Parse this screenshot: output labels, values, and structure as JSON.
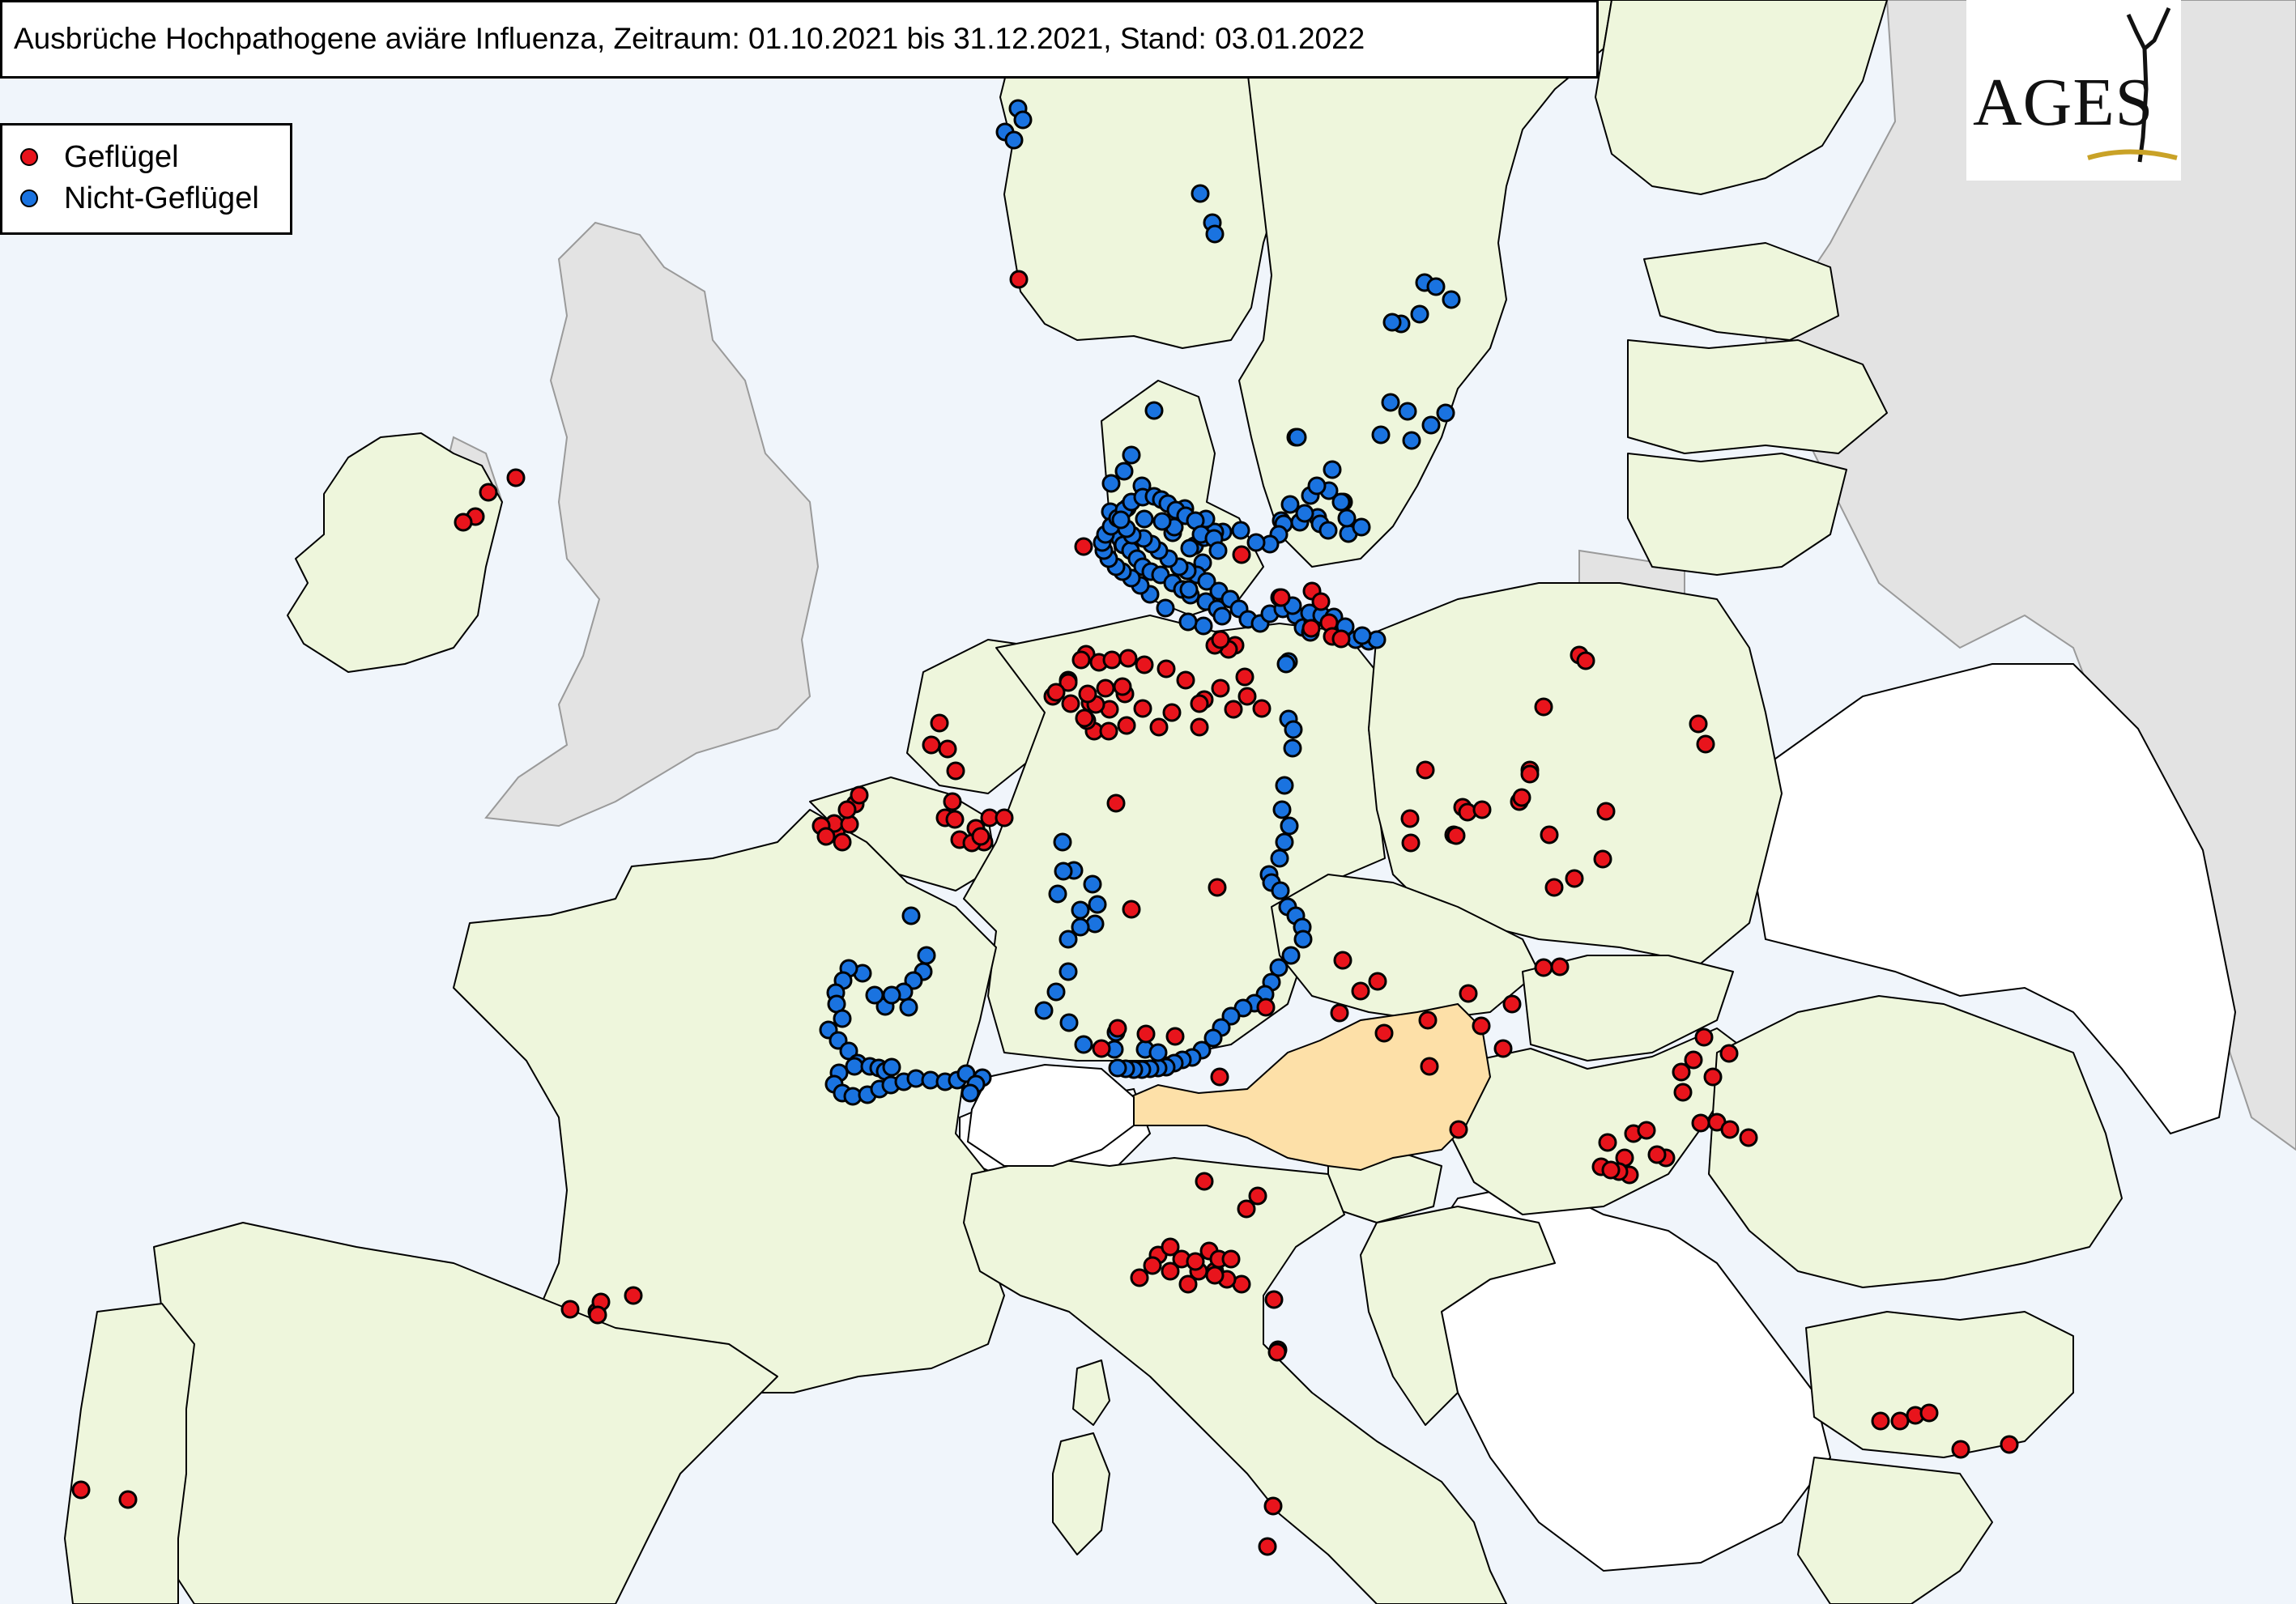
{
  "title": "Ausbrüche Hochpathogene aviäre Influenza, Zeitraum: 01.10.2021 bis 31.12.2021, Stand: 03.01.2022",
  "legend": {
    "poultry_label": "Geflügel",
    "nonpoultry_label": "Nicht-Geflügel"
  },
  "logo": {
    "text": "AGES"
  },
  "colors": {
    "sea": "#f0f5fb",
    "affected_country": "#eef6dc",
    "austria": "#fde0a8",
    "unaffected_country": "#ffffff",
    "non_eu": "#e3e3e3",
    "poultry": "#e8141c",
    "nonpoultry": "#1a73e0",
    "outline": "#000000"
  }
}
